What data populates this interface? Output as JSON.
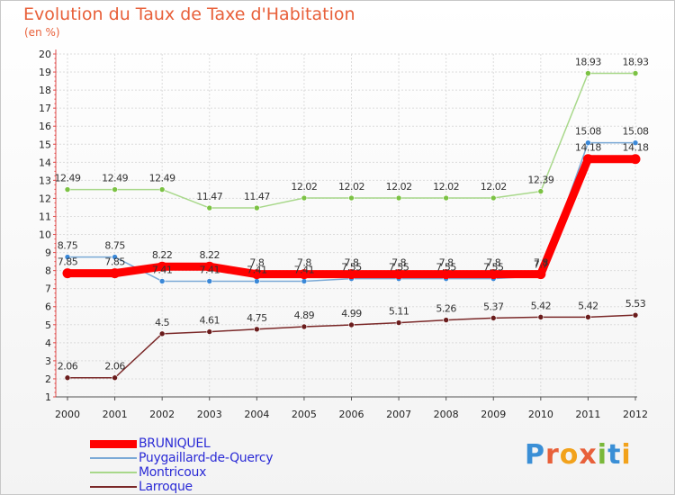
{
  "title": "Evolution du Taux de Taxe d'Habitation",
  "subtitle": "(en %)",
  "brand": {
    "letters": [
      "P",
      "r",
      "o",
      "x",
      "i",
      "t",
      "i"
    ],
    "colors": [
      "#3a8fd6",
      "#e8603a",
      "#f2a21b",
      "#e8603a",
      "#7ab83a",
      "#3a8fd6",
      "#f2a21b"
    ]
  },
  "chart_data": {
    "type": "line",
    "x": [
      "2000",
      "2001",
      "2002",
      "2003",
      "2004",
      "2005",
      "2006",
      "2007",
      "2008",
      "2009",
      "2010",
      "2011",
      "2012"
    ],
    "ylim": [
      1,
      20
    ],
    "yticks": [
      "1",
      "2",
      "3",
      "4",
      "5",
      "6",
      "7",
      "8",
      "9",
      "10",
      "11",
      "12",
      "13",
      "14",
      "15",
      "16",
      "17",
      "18",
      "19",
      "20"
    ],
    "grid": true,
    "legend_position": "bottom-left",
    "series": [
      {
        "name": "BRUNIQUEL",
        "color": "#ff0000",
        "point_color": "#ff0000",
        "width": 9,
        "values": [
          7.85,
          7.85,
          8.22,
          8.22,
          7.8,
          7.8,
          7.8,
          7.8,
          7.8,
          7.8,
          7.8,
          14.18,
          14.18
        ],
        "labels": [
          "7.85",
          "7.85",
          "8.22",
          "8.22",
          "7.8",
          "7.8",
          "7.8",
          "7.8",
          "7.8",
          "7.8",
          "7.8",
          "14.18",
          "14.18"
        ]
      },
      {
        "name": "Puygaillard-de-Quercy",
        "color": "#7aa9d6",
        "point_color": "#3a88d8",
        "width": 1.5,
        "values": [
          8.75,
          8.75,
          7.41,
          7.41,
          7.41,
          7.41,
          7.55,
          7.55,
          7.55,
          7.55,
          7.7,
          15.08,
          15.08
        ],
        "labels": [
          "8.75",
          "8.75",
          "7.41",
          "7.41",
          "7.41",
          "7.41",
          "7.55",
          "7.55",
          "7.55",
          "7.55",
          "7.7",
          "15.08",
          "15.08"
        ]
      },
      {
        "name": "Montricoux",
        "color": "#a8d88a",
        "point_color": "#7cc244",
        "width": 1.5,
        "values": [
          12.49,
          12.49,
          12.49,
          11.47,
          11.47,
          12.02,
          12.02,
          12.02,
          12.02,
          12.02,
          12.39,
          18.93,
          18.93
        ],
        "labels": [
          "12.49",
          "12.49",
          "12.49",
          "11.47",
          "11.47",
          "12.02",
          "12.02",
          "12.02",
          "12.02",
          "12.02",
          "12.39",
          "18.93",
          "18.93"
        ]
      },
      {
        "name": "Larroque",
        "color": "#7a2828",
        "point_color": "#6a1c1c",
        "width": 1.5,
        "values": [
          2.06,
          2.06,
          4.5,
          4.61,
          4.75,
          4.89,
          4.99,
          5.11,
          5.26,
          5.37,
          5.42,
          5.42,
          5.53
        ],
        "labels": [
          "2.06",
          "2.06",
          "4.5",
          "4.61",
          "4.75",
          "4.89",
          "4.99",
          "5.11",
          "5.26",
          "5.37",
          "5.42",
          "5.42",
          "5.53"
        ]
      }
    ]
  }
}
